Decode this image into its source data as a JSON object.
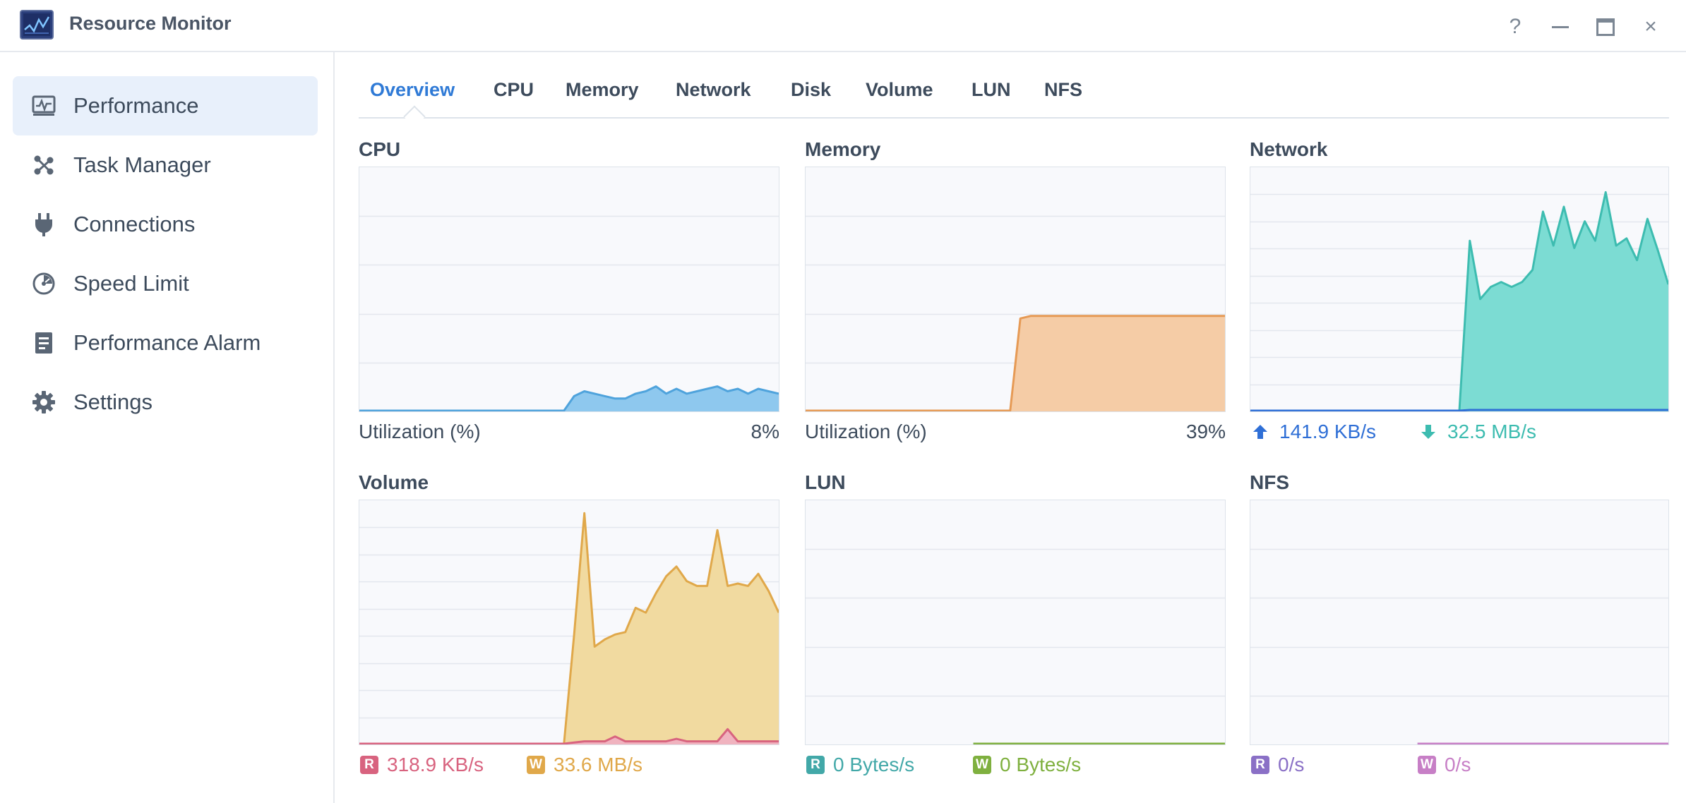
{
  "window": {
    "title": "Resource Monitor",
    "controls": [
      "?",
      "–",
      "□",
      "×"
    ]
  },
  "sidebar": {
    "items": [
      {
        "label": "Performance",
        "icon": "performance-icon",
        "active": true
      },
      {
        "label": "Task Manager",
        "icon": "task-manager-icon",
        "active": false
      },
      {
        "label": "Connections",
        "icon": "plug-icon",
        "active": false
      },
      {
        "label": "Speed Limit",
        "icon": "gauge-icon",
        "active": false
      },
      {
        "label": "Performance Alarm",
        "icon": "alarm-list-icon",
        "active": false
      },
      {
        "label": "Settings",
        "icon": "gear-icon",
        "active": false
      }
    ]
  },
  "tabs": [
    {
      "label": "Overview",
      "active": true
    },
    {
      "label": "CPU",
      "active": false
    },
    {
      "label": "Memory",
      "active": false
    },
    {
      "label": "Network",
      "active": false
    },
    {
      "label": "Disk",
      "active": false
    },
    {
      "label": "Volume",
      "active": false
    },
    {
      "label": "LUN",
      "active": false
    },
    {
      "label": "NFS",
      "active": false
    }
  ],
  "panels": {
    "cpu": {
      "title": "CPU",
      "metric_label": "Utilization  (%)",
      "value": "8%"
    },
    "memory": {
      "title": "Memory",
      "metric_label": "Utilization  (%)",
      "value": "39%"
    },
    "network": {
      "title": "Network",
      "upload": "141.9 KB/s",
      "download": "32.5 MB/s"
    },
    "volume": {
      "title": "Volume",
      "read_badge": "R",
      "read": "318.9 KB/s",
      "write_badge": "W",
      "write": "33.6 MB/s"
    },
    "lun": {
      "title": "LUN",
      "read_badge": "R",
      "read": "0 Bytes/s",
      "write_badge": "W",
      "write": "0 Bytes/s"
    },
    "nfs": {
      "title": "NFS",
      "read_badge": "R",
      "read": "0/s",
      "write_badge": "W",
      "write": "0/s"
    }
  },
  "colors": {
    "accent": "#2f7ad6",
    "cpu": "#4fa3dc",
    "memory": "#e69a55",
    "network_down": "#3dbcb0",
    "network_up": "#2f6fd6",
    "volume_write": "#e0a84a",
    "volume_read": "#d8637f",
    "lun_read": "#42a8a8",
    "lun_write": "#7fb03f",
    "nfs_read": "#8a70c6",
    "nfs_write": "#c77fc6"
  },
  "chart_data": [
    {
      "type": "area",
      "title": "CPU",
      "ylim": [
        0,
        100
      ],
      "series": [
        {
          "values": [
            0,
            0,
            0,
            0,
            0,
            0,
            0,
            0,
            0,
            0,
            0,
            0,
            0,
            0,
            0,
            0,
            0,
            0,
            0,
            0,
            0,
            6,
            8,
            7,
            6,
            5,
            5,
            7,
            8,
            10,
            7,
            9,
            7,
            8,
            9,
            10,
            8,
            9,
            7,
            9,
            8,
            7
          ]
        }
      ]
    },
    {
      "type": "area",
      "title": "Memory",
      "ylim": [
        0,
        100
      ],
      "series": [
        {
          "values": [
            0,
            0,
            0,
            0,
            0,
            0,
            0,
            0,
            0,
            0,
            0,
            0,
            0,
            0,
            0,
            0,
            0,
            0,
            0,
            0,
            0,
            38,
            39,
            39,
            39,
            39,
            39,
            39,
            39,
            39,
            39,
            39,
            39,
            39,
            39,
            39,
            39,
            39,
            39,
            39,
            39,
            39
          ]
        }
      ]
    },
    {
      "type": "area",
      "title": "Network",
      "series": [
        {
          "values": [
            0,
            0,
            0,
            0,
            0,
            0,
            0,
            0,
            0,
            0,
            0,
            0,
            0,
            0,
            0,
            0,
            0,
            0,
            0,
            0,
            0,
            70,
            46,
            51,
            53,
            51,
            53,
            58,
            82,
            68,
            84,
            67,
            78,
            70,
            90,
            68,
            71,
            62,
            79,
            66,
            52
          ]
        },
        {
          "values": [
            0,
            0,
            0,
            0,
            0,
            0,
            0,
            0,
            0,
            0,
            0,
            0,
            0,
            0,
            0,
            0,
            0,
            0,
            0,
            0,
            0,
            0.3,
            0.3,
            0.3,
            0.3,
            0.3,
            0.3,
            0.3,
            0.3,
            0.3,
            0.3,
            0.3,
            0.3,
            0.3,
            0.3,
            0.3,
            0.3,
            0.3,
            0.3,
            0.3,
            0.3
          ]
        }
      ]
    },
    {
      "type": "area",
      "title": "Volume",
      "series": [
        {
          "values": [
            0,
            0,
            0,
            0,
            0,
            0,
            0,
            0,
            0,
            0,
            0,
            0,
            0,
            0,
            0,
            0,
            0,
            0,
            0,
            0,
            0,
            45,
            95,
            40,
            43,
            45,
            46,
            56,
            54,
            62,
            69,
            73,
            67,
            65,
            65,
            88,
            65,
            66,
            65,
            70,
            63,
            54
          ]
        },
        {
          "values": [
            0,
            0,
            0,
            0,
            0,
            0,
            0,
            0,
            0,
            0,
            0,
            0,
            0,
            0,
            0,
            0,
            0,
            0,
            0,
            0,
            0,
            0.5,
            1,
            1,
            1,
            3,
            1,
            1,
            1,
            1,
            1,
            2,
            1,
            1,
            1,
            1,
            6,
            1,
            1,
            1,
            1,
            1
          ]
        }
      ]
    },
    {
      "type": "area",
      "title": "LUN",
      "series": [
        {
          "values": [
            0,
            0
          ]
        },
        {
          "values": [
            0,
            0
          ]
        }
      ]
    },
    {
      "type": "area",
      "title": "NFS",
      "series": [
        {
          "values": [
            0,
            0
          ]
        },
        {
          "values": [
            0,
            0
          ]
        }
      ]
    }
  ]
}
